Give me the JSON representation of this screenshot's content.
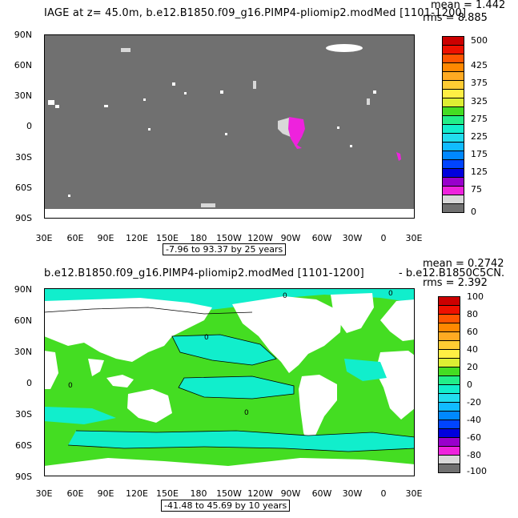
{
  "top": {
    "title": "IAGE at z=  45.0m, b.e12.B1850.f09_g16.PIMP4-pliomip2.modMed [1101-1200]",
    "mean": "mean = 1.442",
    "rms": "rms = 8.885",
    "range": "-7.96 to 93.37 by 25 years",
    "lat_ticks": [
      "90N",
      "60N",
      "30N",
      "0",
      "30S",
      "60S",
      "90S"
    ],
    "lon_ticks": [
      "30E",
      "60E",
      "90E",
      "120E",
      "150E",
      "180",
      "150W",
      "120W",
      "90W",
      "60W",
      "30W",
      "0",
      "30E"
    ],
    "colorbar_labels": [
      "500",
      "425",
      "375",
      "325",
      "275",
      "225",
      "175",
      "125",
      "75",
      "0"
    ],
    "colorbar_colors": [
      "#cc0000",
      "#ee1100",
      "#ff5500",
      "#ff8800",
      "#ffaa22",
      "#ffcc33",
      "#ffee44",
      "#ddee33",
      "#44dd22",
      "#22ee88",
      "#11eecc",
      "#22ddee",
      "#11bbff",
      "#0088ff",
      "#0044ff",
      "#0000dd",
      "#9900cc",
      "#ee22dd",
      "#d8d8d8",
      "#707070"
    ]
  },
  "bottom": {
    "title": "b.e12.B1850.f09_g16.PIMP4-pliomip2.modMed [1101-1200]",
    "subtitle": "- b.e12.B1850C5CN.",
    "mean": "mean = 0.2742",
    "rms": "rms = 2.392",
    "range": "-41.48 to 45.69 by 10 years",
    "lat_ticks": [
      "90N",
      "60N",
      "30N",
      "0",
      "30S",
      "60S",
      "90S"
    ],
    "lon_ticks": [
      "30E",
      "60E",
      "90E",
      "120E",
      "150E",
      "180",
      "150W",
      "120W",
      "90W",
      "60W",
      "30W",
      "0",
      "30E"
    ],
    "colorbar_labels": [
      "100",
      "80",
      "60",
      "40",
      "20",
      "0",
      "-20",
      "-40",
      "-60",
      "-80",
      "-100"
    ],
    "colorbar_colors": [
      "#cc0000",
      "#ee1100",
      "#ff5500",
      "#ff8800",
      "#ffaa22",
      "#ffcc33",
      "#ffee44",
      "#ddee33",
      "#44dd22",
      "#22ee88",
      "#11eecc",
      "#22ddee",
      "#11bbff",
      "#0088ff",
      "#0044ff",
      "#0000dd",
      "#9900cc",
      "#ee22dd",
      "#d8d8d8",
      "#707070"
    ],
    "contour_label": "0"
  }
}
